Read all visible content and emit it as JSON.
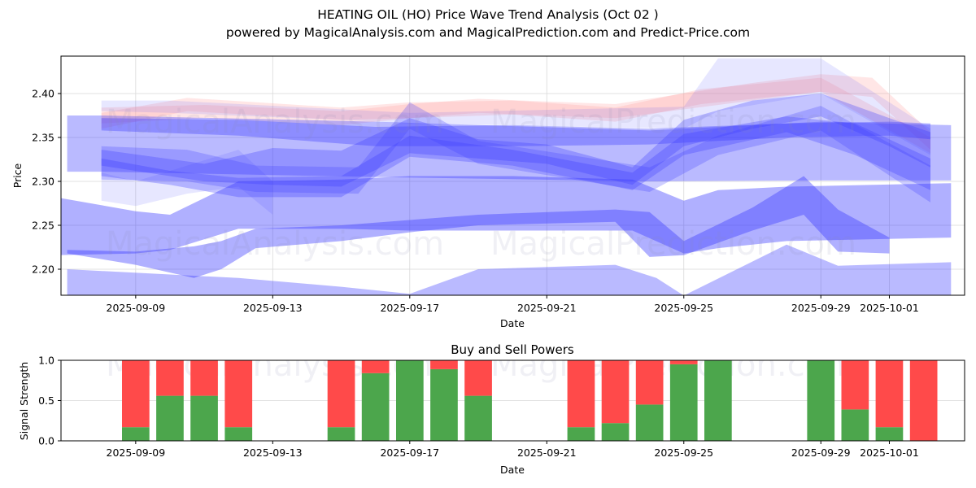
{
  "header": {
    "title": "HEATING OIL (HO) Price Wave Trend Analysis (Oct 02 )",
    "subtitle": "powered by MagicalAnalysis.com and MagicalPrediction.com and Predict-Price.com"
  },
  "watermarks": [
    "MagicalAnalysis.com",
    "MagicalPrediction.com"
  ],
  "colors": {
    "band_blue": "#3a3aff",
    "band_pink": "#ff9a9a",
    "buy_green": "#4ca64c",
    "sell_red": "#ff4a4a",
    "grid": "#d9d9d9"
  },
  "chart_data": [
    {
      "type": "area",
      "title": "",
      "xlabel": "Date",
      "ylabel": "Price",
      "ylim": [
        2.17,
        2.443
      ],
      "xlim": [
        "2025-09-06.8",
        "2025-10-03.2"
      ],
      "grid": true,
      "yticks": [
        "2.20",
        "2.25",
        "2.30",
        "2.35",
        "2.40"
      ],
      "ytick_values": [
        2.2,
        2.25,
        2.3,
        2.35,
        2.4
      ],
      "xticks": [
        "2025-09-09",
        "2025-09-13",
        "2025-09-17",
        "2025-09-21",
        "2025-09-25",
        "2025-09-29",
        "2025-10-01"
      ],
      "xtick_days": [
        2.0,
        6.0,
        10.0,
        14.0,
        18.0,
        22.0,
        24.0
      ],
      "x_origin": "2025-09-07",
      "note": "x values are days since 2025-09-07; each band is a filled region between lower and upper price curves",
      "bands": [
        {
          "name": "pink-top-1",
          "color": "pink",
          "alpha": 0.25,
          "x": [
            1.0,
            4.0,
            8.0,
            10.0,
            12.0,
            16.0,
            20.0,
            22.0,
            23.5,
            25.2
          ],
          "upper": [
            2.384,
            2.387,
            2.38,
            2.388,
            2.394,
            2.388,
            2.412,
            2.422,
            2.418,
            2.356
          ],
          "lower": [
            2.366,
            2.372,
            2.364,
            2.372,
            2.378,
            2.372,
            2.392,
            2.402,
            2.396,
            2.336
          ]
        },
        {
          "name": "pink-top-2",
          "color": "pink",
          "alpha": 0.25,
          "x": [
            1.0,
            3.5,
            8.0,
            10.0,
            13.0,
            16.0,
            18.5,
            22.0,
            25.2
          ],
          "upper": [
            2.378,
            2.395,
            2.384,
            2.39,
            2.392,
            2.384,
            2.405,
            2.418,
            2.35
          ],
          "lower": [
            2.36,
            2.38,
            2.37,
            2.372,
            2.376,
            2.368,
            2.388,
            2.402,
            2.332
          ]
        },
        {
          "name": "lavender-top",
          "color": "blue",
          "alpha": 0.12,
          "x": [
            1.0,
            3.0,
            8.0,
            10.0,
            18.0,
            19.0,
            22.0,
            25.2
          ],
          "upper": [
            2.392,
            2.392,
            2.382,
            2.378,
            2.385,
            2.44,
            2.44,
            2.36
          ],
          "lower": [
            2.38,
            2.378,
            2.37,
            2.366,
            2.36,
            2.38,
            2.4,
            2.33
          ]
        },
        {
          "name": "blue-upper-1",
          "color": "blue",
          "alpha": 0.35,
          "x": [
            1.0,
            5.0,
            9.0,
            13.0,
            17.0,
            21.0,
            24.0,
            25.2
          ],
          "upper": [
            2.372,
            2.37,
            2.362,
            2.364,
            2.36,
            2.366,
            2.368,
            2.366
          ],
          "lower": [
            2.358,
            2.352,
            2.34,
            2.34,
            2.342,
            2.35,
            2.352,
            2.348
          ]
        },
        {
          "name": "blue-box-left",
          "color": "blue",
          "alpha": 0.35,
          "x": [
            0.0,
            1.0,
            9.0,
            17.0,
            22.0,
            25.8
          ],
          "upper": [
            2.375,
            2.375,
            2.368,
            2.358,
            2.368,
            2.364
          ],
          "lower": [
            2.311,
            2.311,
            2.305,
            2.3,
            2.301,
            2.301
          ]
        },
        {
          "name": "blue-mid-1",
          "color": "blue",
          "alpha": 0.3,
          "x": [
            1.0,
            4.0,
            6.0,
            8.0,
            10.0,
            12.0,
            14.0,
            16.5,
            18.0,
            20.0,
            22.0,
            24.0,
            25.2
          ],
          "upper": [
            2.336,
            2.32,
            2.338,
            2.335,
            2.372,
            2.348,
            2.342,
            2.316,
            2.37,
            2.392,
            2.4,
            2.372,
            2.356
          ],
          "lower": [
            2.318,
            2.3,
            2.296,
            2.294,
            2.332,
            2.326,
            2.32,
            2.296,
            2.34,
            2.36,
            2.374,
            2.34,
            2.316
          ]
        },
        {
          "name": "blue-mid-2",
          "color": "blue",
          "alpha": 0.3,
          "x": [
            1.0,
            3.0,
            5.0,
            8.0,
            10.0,
            13.0,
            16.5,
            18.0,
            21.0,
            23.0,
            25.2
          ],
          "upper": [
            2.326,
            2.312,
            2.304,
            2.306,
            2.352,
            2.336,
            2.31,
            2.354,
            2.374,
            2.366,
            2.326
          ],
          "lower": [
            2.306,
            2.296,
            2.282,
            2.282,
            2.328,
            2.318,
            2.29,
            2.33,
            2.356,
            2.33,
            2.29
          ]
        },
        {
          "name": "blue-mid-3",
          "color": "blue",
          "alpha": 0.25,
          "x": [
            1.0,
            3.5,
            5.5,
            8.5,
            10.0,
            12.0,
            17.0,
            19.0,
            22.0,
            25.2
          ],
          "upper": [
            2.34,
            2.336,
            2.318,
            2.316,
            2.39,
            2.346,
            2.316,
            2.352,
            2.386,
            2.318
          ],
          "lower": [
            2.302,
            2.3,
            2.288,
            2.286,
            2.36,
            2.32,
            2.288,
            2.33,
            2.358,
            2.276
          ]
        },
        {
          "name": "lavender-low-left",
          "color": "blue",
          "alpha": 0.12,
          "x": [
            1.0,
            2.0,
            3.5,
            5.0,
            6.0
          ],
          "upper": [
            2.31,
            2.3,
            2.318,
            2.336,
            2.3
          ],
          "lower": [
            2.278,
            2.272,
            2.286,
            2.294,
            2.262
          ]
        },
        {
          "name": "blue-wide-low",
          "color": "blue",
          "alpha": 0.4,
          "x": [
            -0.2,
            2.0,
            3.0,
            5.0,
            8.0,
            10.0,
            13.0,
            16.5,
            18.0,
            19.0,
            21.0,
            25.8
          ],
          "upper": [
            2.281,
            2.266,
            2.262,
            2.3,
            2.302,
            2.306,
            2.306,
            2.302,
            2.278,
            2.29,
            2.294,
            2.298
          ],
          "lower": [
            2.216,
            2.218,
            2.222,
            2.246,
            2.246,
            2.244,
            2.244,
            2.244,
            2.218,
            2.224,
            2.232,
            2.236
          ]
        },
        {
          "name": "blue-dark-low",
          "color": "blue",
          "alpha": 0.4,
          "x": [
            0.0,
            2.0,
            3.7,
            4.5,
            5.5,
            8.0,
            10.0,
            12.0,
            16.0,
            17.0,
            18.0,
            20.0,
            21.5,
            22.5,
            24.0
          ],
          "upper": [
            2.222,
            2.22,
            2.226,
            2.232,
            2.246,
            2.25,
            2.256,
            2.262,
            2.268,
            2.265,
            2.232,
            2.27,
            2.306,
            2.268,
            2.236
          ],
          "lower": [
            2.218,
            2.205,
            2.19,
            2.2,
            2.224,
            2.232,
            2.242,
            2.25,
            2.254,
            2.214,
            2.216,
            2.244,
            2.262,
            2.22,
            2.218
          ]
        },
        {
          "name": "blue-bottom",
          "color": "blue",
          "alpha": 0.35,
          "x": [
            0.0,
            5.0,
            8.0,
            10.0,
            12.0,
            16.0,
            17.2,
            18.0,
            21.0,
            22.5,
            25.8
          ],
          "upper": [
            2.2,
            2.19,
            2.18,
            2.172,
            2.2,
            2.205,
            2.19,
            2.17,
            2.228,
            2.204,
            2.208
          ],
          "lower": [
            2.17,
            2.17,
            2.17,
            2.17,
            2.17,
            2.17,
            2.17,
            2.17,
            2.17,
            2.17,
            2.17
          ]
        }
      ]
    },
    {
      "type": "bar",
      "title": "Buy and Sell Powers",
      "xlabel": "Date",
      "ylabel": "Signal Strength",
      "ylim": [
        0,
        1.0
      ],
      "yticks": [
        "0.0",
        "0.5",
        "1.0"
      ],
      "ytick_values": [
        0.0,
        0.5,
        1.0
      ],
      "xticks": [
        "2025-09-09",
        "2025-09-13",
        "2025-09-17",
        "2025-09-21",
        "2025-09-25",
        "2025-09-29",
        "2025-10-01"
      ],
      "stacked": true,
      "categories": [
        "2025-09-09",
        "2025-09-10",
        "2025-09-11",
        "2025-09-12",
        "2025-09-15",
        "2025-09-16",
        "2025-09-17",
        "2025-09-18",
        "2025-09-19",
        "2025-09-22",
        "2025-09-23",
        "2025-09-24",
        "2025-09-25",
        "2025-09-26",
        "2025-09-29",
        "2025-09-30",
        "2025-10-01",
        "2025-10-02"
      ],
      "series": [
        {
          "name": "Buy",
          "color": "green",
          "values": [
            0.17,
            0.56,
            0.56,
            0.17,
            0.17,
            0.84,
            1.0,
            0.89,
            0.56,
            0.17,
            0.22,
            0.45,
            0.95,
            1.0,
            1.0,
            0.39,
            0.17,
            0.0
          ]
        },
        {
          "name": "Sell",
          "color": "red",
          "values": [
            0.83,
            0.44,
            0.44,
            0.83,
            0.83,
            0.16,
            0.0,
            0.11,
            0.44,
            0.83,
            0.78,
            0.55,
            0.05,
            0.0,
            0.0,
            0.61,
            0.83,
            1.0
          ]
        }
      ]
    }
  ]
}
